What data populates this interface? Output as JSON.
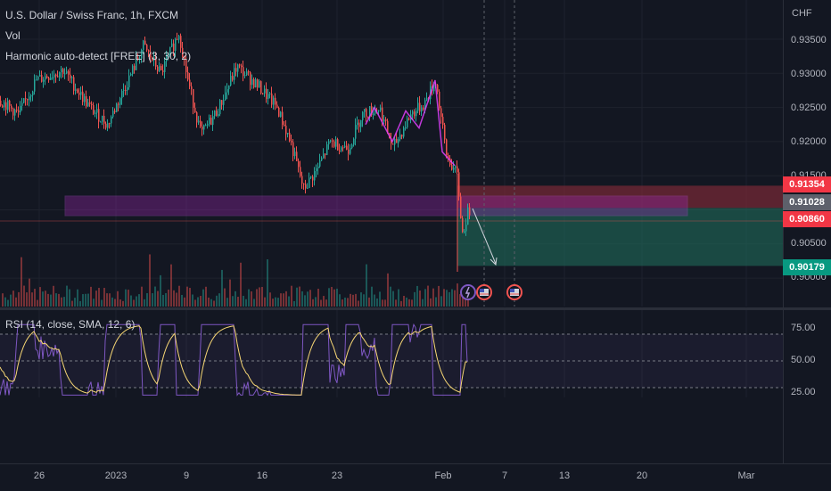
{
  "legend": {
    "symbol": "U.S. Dollar / Swiss Franc, 1h, FXCM",
    "vol": "Vol",
    "indicator": "Harmonic auto-detect [FREE] (3, 30, 2)",
    "rsi": "RSI (14, close, SMA, 12, 6)"
  },
  "price_axis": {
    "currency": "CHF",
    "ticks": [
      "0.93500",
      "0.93000",
      "0.92500",
      "0.92000",
      "0.91500",
      "0.90500",
      "0.90000"
    ],
    "tags": {
      "upper": "0.91354",
      "current": "0.91028",
      "mid": "0.90860",
      "lower": "0.90179"
    }
  },
  "rsi_axis": {
    "ticks": [
      "75.00",
      "50.00",
      "25.00"
    ]
  },
  "time_axis": {
    "labels": [
      "26",
      "2023",
      "9",
      "16",
      "23",
      "Feb",
      "7",
      "13",
      "20",
      "Mar"
    ]
  },
  "colors": {
    "bg": "#131722",
    "up": "#26a69a",
    "down": "#ef5350",
    "rsi": "#7e57c2",
    "rsi_ma": "#f7d774",
    "purple_zone": "#9c27b0",
    "green_zone": "#1f6b5a",
    "red_zone": "#7a2a36"
  },
  "icons": [
    "lightning-event-icon",
    "us-flag-event-icon",
    "us-flag-event-icon"
  ]
}
